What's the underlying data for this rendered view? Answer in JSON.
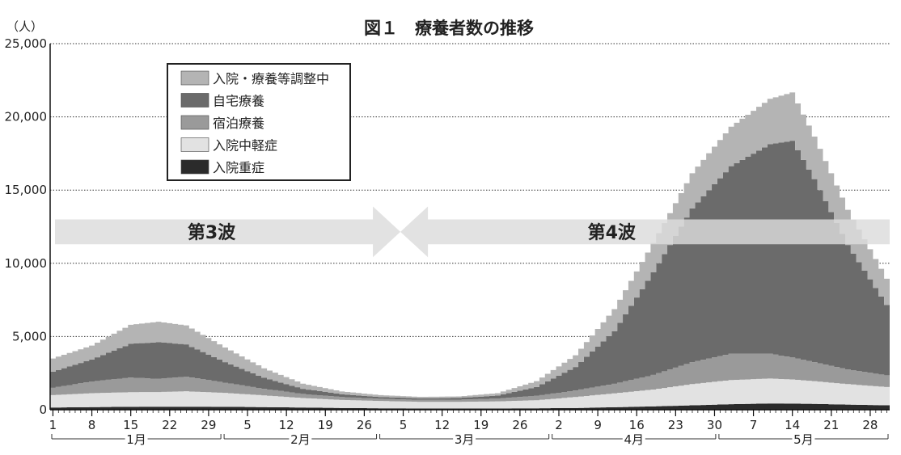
{
  "chart_data": {
    "type": "area",
    "stacked": true,
    "title": "図１　療養者数の推移",
    "y_unit_label": "（人）",
    "ylim": [
      0,
      25000
    ],
    "y_ticks": [
      0,
      5000,
      10000,
      15000,
      20000,
      25000
    ],
    "y_tick_labels": [
      "0",
      "5,000",
      "10,000",
      "15,000",
      "20,000",
      "25,000"
    ],
    "grid": "dotted horizontal at y ticks",
    "x_start_date": "2021-01-01",
    "x_end_date": "2021-05-31",
    "x_tick_labels": [
      {
        "date": "2021-01-01",
        "label": "1"
      },
      {
        "date": "2021-01-08",
        "label": "8"
      },
      {
        "date": "2021-01-15",
        "label": "15"
      },
      {
        "date": "2021-01-22",
        "label": "22"
      },
      {
        "date": "2021-01-29",
        "label": "29"
      },
      {
        "date": "2021-02-05",
        "label": "5"
      },
      {
        "date": "2021-02-12",
        "label": "12"
      },
      {
        "date": "2021-02-19",
        "label": "19"
      },
      {
        "date": "2021-02-26",
        "label": "26"
      },
      {
        "date": "2021-03-05",
        "label": "5"
      },
      {
        "date": "2021-03-12",
        "label": "12"
      },
      {
        "date": "2021-03-19",
        "label": "19"
      },
      {
        "date": "2021-03-26",
        "label": "26"
      },
      {
        "date": "2021-04-02",
        "label": "2"
      },
      {
        "date": "2021-04-09",
        "label": "9"
      },
      {
        "date": "2021-04-16",
        "label": "16"
      },
      {
        "date": "2021-04-23",
        "label": "23"
      },
      {
        "date": "2021-04-30",
        "label": "30"
      },
      {
        "date": "2021-05-07",
        "label": "7"
      },
      {
        "date": "2021-05-14",
        "label": "14"
      },
      {
        "date": "2021-05-21",
        "label": "21"
      },
      {
        "date": "2021-05-28",
        "label": "28"
      }
    ],
    "months": [
      {
        "label": "1月",
        "start": "2021-01-01",
        "end": "2021-01-31"
      },
      {
        "label": "2月",
        "start": "2021-02-01",
        "end": "2021-02-28"
      },
      {
        "label": "3月",
        "start": "2021-03-01",
        "end": "2021-03-31"
      },
      {
        "label": "4月",
        "start": "2021-04-01",
        "end": "2021-04-30"
      },
      {
        "label": "5月",
        "start": "2021-05-01",
        "end": "2021-05-31"
      }
    ],
    "legend_position": "top-left",
    "series": [
      {
        "name": "入院・療養等調整中",
        "color": "#b4b4b4",
        "points": [
          [
            "2021-01-01",
            900
          ],
          [
            "2021-01-08",
            950
          ],
          [
            "2021-01-15",
            1300
          ],
          [
            "2021-01-20",
            1400
          ],
          [
            "2021-01-25",
            1300
          ],
          [
            "2021-02-01",
            1000
          ],
          [
            "2021-02-08",
            650
          ],
          [
            "2021-02-15",
            350
          ],
          [
            "2021-02-22",
            200
          ],
          [
            "2021-03-01",
            130
          ],
          [
            "2021-03-08",
            100
          ],
          [
            "2021-03-15",
            110
          ],
          [
            "2021-03-22",
            160
          ],
          [
            "2021-03-29",
            400
          ],
          [
            "2021-04-05",
            800
          ],
          [
            "2021-04-12",
            1500
          ],
          [
            "2021-04-19",
            2000
          ],
          [
            "2021-04-26",
            2400
          ],
          [
            "2021-05-03",
            2700
          ],
          [
            "2021-05-10",
            3100
          ],
          [
            "2021-05-14",
            3300
          ],
          [
            "2021-05-18",
            2900
          ],
          [
            "2021-05-24",
            2400
          ],
          [
            "2021-05-31",
            1800
          ]
        ]
      },
      {
        "name": "自宅療養",
        "color": "#6b6b6b",
        "points": [
          [
            "2021-01-01",
            1100
          ],
          [
            "2021-01-08",
            1500
          ],
          [
            "2021-01-15",
            2300
          ],
          [
            "2021-01-20",
            2500
          ],
          [
            "2021-01-25",
            2200
          ],
          [
            "2021-02-01",
            1400
          ],
          [
            "2021-02-08",
            750
          ],
          [
            "2021-02-15",
            350
          ],
          [
            "2021-02-22",
            180
          ],
          [
            "2021-03-01",
            120
          ],
          [
            "2021-03-08",
            100
          ],
          [
            "2021-03-15",
            110
          ],
          [
            "2021-03-22",
            200
          ],
          [
            "2021-03-29",
            600
          ],
          [
            "2021-04-05",
            1600
          ],
          [
            "2021-04-12",
            3600
          ],
          [
            "2021-04-19",
            7000
          ],
          [
            "2021-04-26",
            10500
          ],
          [
            "2021-05-03",
            12800
          ],
          [
            "2021-05-10",
            14300
          ],
          [
            "2021-05-14",
            14800
          ],
          [
            "2021-05-18",
            12500
          ],
          [
            "2021-05-24",
            8500
          ],
          [
            "2021-05-31",
            4800
          ]
        ]
      },
      {
        "name": "宿泊療養",
        "color": "#9a9a9a",
        "points": [
          [
            "2021-01-01",
            500
          ],
          [
            "2021-01-08",
            800
          ],
          [
            "2021-01-15",
            1000
          ],
          [
            "2021-01-20",
            900
          ],
          [
            "2021-01-25",
            1000
          ],
          [
            "2021-02-01",
            700
          ],
          [
            "2021-02-08",
            450
          ],
          [
            "2021-02-15",
            280
          ],
          [
            "2021-02-22",
            200
          ],
          [
            "2021-03-01",
            150
          ],
          [
            "2021-03-08",
            140
          ],
          [
            "2021-03-15",
            150
          ],
          [
            "2021-03-22",
            200
          ],
          [
            "2021-03-29",
            300
          ],
          [
            "2021-04-05",
            450
          ],
          [
            "2021-04-12",
            650
          ],
          [
            "2021-04-19",
            1000
          ],
          [
            "2021-04-26",
            1500
          ],
          [
            "2021-05-03",
            1800
          ],
          [
            "2021-05-10",
            1700
          ],
          [
            "2021-05-14",
            1500
          ],
          [
            "2021-05-18",
            1300
          ],
          [
            "2021-05-24",
            1000
          ],
          [
            "2021-05-31",
            800
          ]
        ]
      },
      {
        "name": "入院中軽症",
        "color": "#e2e2e2",
        "points": [
          [
            "2021-01-01",
            850
          ],
          [
            "2021-01-08",
            950
          ],
          [
            "2021-01-15",
            1000
          ],
          [
            "2021-01-20",
            1000
          ],
          [
            "2021-01-25",
            1050
          ],
          [
            "2021-02-01",
            950
          ],
          [
            "2021-02-08",
            800
          ],
          [
            "2021-02-15",
            650
          ],
          [
            "2021-02-22",
            550
          ],
          [
            "2021-03-01",
            500
          ],
          [
            "2021-03-08",
            450
          ],
          [
            "2021-03-15",
            450
          ],
          [
            "2021-03-22",
            480
          ],
          [
            "2021-03-29",
            550
          ],
          [
            "2021-04-05",
            750
          ],
          [
            "2021-04-12",
            950
          ],
          [
            "2021-04-19",
            1150
          ],
          [
            "2021-04-26",
            1450
          ],
          [
            "2021-05-03",
            1650
          ],
          [
            "2021-05-10",
            1700
          ],
          [
            "2021-05-14",
            1650
          ],
          [
            "2021-05-18",
            1550
          ],
          [
            "2021-05-24",
            1400
          ],
          [
            "2021-05-31",
            1250
          ]
        ]
      },
      {
        "name": "入院重症",
        "color": "#2b2b2b",
        "points": [
          [
            "2021-01-01",
            150
          ],
          [
            "2021-01-08",
            180
          ],
          [
            "2021-01-15",
            200
          ],
          [
            "2021-01-20",
            210
          ],
          [
            "2021-01-25",
            210
          ],
          [
            "2021-02-01",
            200
          ],
          [
            "2021-02-08",
            180
          ],
          [
            "2021-02-15",
            150
          ],
          [
            "2021-02-22",
            120
          ],
          [
            "2021-03-01",
            100
          ],
          [
            "2021-03-08",
            90
          ],
          [
            "2021-03-15",
            90
          ],
          [
            "2021-03-22",
            90
          ],
          [
            "2021-03-29",
            100
          ],
          [
            "2021-04-05",
            120
          ],
          [
            "2021-04-12",
            170
          ],
          [
            "2021-04-19",
            230
          ],
          [
            "2021-04-26",
            300
          ],
          [
            "2021-05-03",
            380
          ],
          [
            "2021-05-10",
            430
          ],
          [
            "2021-05-14",
            420
          ],
          [
            "2021-05-18",
            400
          ],
          [
            "2021-05-24",
            350
          ],
          [
            "2021-05-31",
            300
          ]
        ]
      }
    ],
    "annotations": [
      {
        "label": "第3波",
        "direction": "right",
        "start": "2021-01-01",
        "end": "2021-03-05",
        "y_top": 13000,
        "y_bottom": 11300
      },
      {
        "label": "第4波",
        "direction": "left",
        "start": "2021-03-05",
        "end": "2021-05-31",
        "y_top": 13000,
        "y_bottom": 11300
      }
    ]
  }
}
